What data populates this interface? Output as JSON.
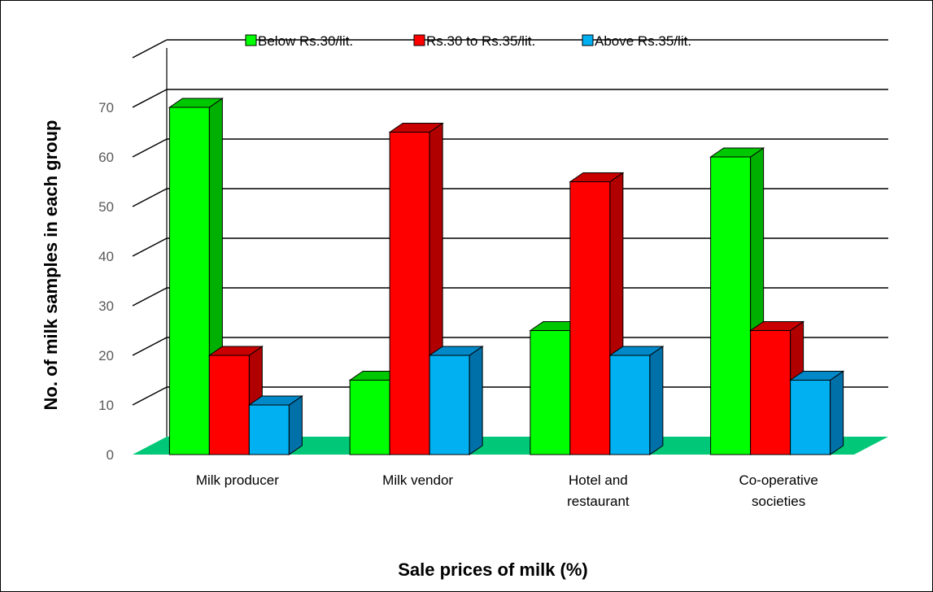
{
  "chart_data": {
    "type": "bar",
    "categories": [
      [
        "Milk producer"
      ],
      [
        "Milk vendor"
      ],
      [
        "Hotel and",
        "restaurant"
      ],
      [
        "Co-operative",
        "societies"
      ]
    ],
    "series": [
      {
        "name": "Below Rs.30/lit.",
        "values": [
          70,
          15,
          25,
          60
        ],
        "color": "#00ff00",
        "side": "#00b000",
        "top": "#00c800"
      },
      {
        "name": "Rs.30 to Rs.35/lit.",
        "values": [
          20,
          65,
          55,
          25
        ],
        "color": "#ff0000",
        "side": "#b00000",
        "top": "#c80000"
      },
      {
        "name": "Above Rs.35/lit.",
        "values": [
          10,
          20,
          20,
          15
        ],
        "color": "#00b0f0",
        "side": "#0070a8",
        "top": "#0088c8"
      }
    ],
    "yticks": [
      0,
      10,
      20,
      30,
      40,
      50,
      60,
      70
    ],
    "ylim": [
      0,
      70
    ],
    "ylabel": "No. of milk samples in each group",
    "xlabel": "Sale prices of milk (%)",
    "floor_color": "#00c878",
    "grid": true,
    "legend_position": "top-center"
  }
}
